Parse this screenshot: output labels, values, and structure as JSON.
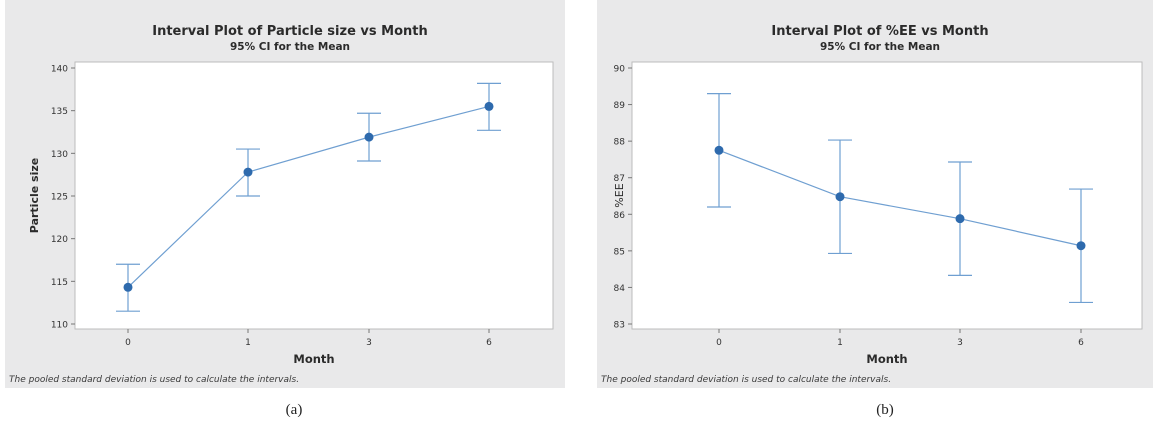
{
  "chart_data": [
    {
      "type": "line",
      "title": "Interval Plot of Particle size vs Month",
      "subtitle": "95% CI for the Mean",
      "xlabel": "Month",
      "ylabel": "Particle size",
      "categories": [
        "0",
        "1",
        "3",
        "6"
      ],
      "series": [
        {
          "values": [
            114.3,
            127.8,
            131.9,
            135.5
          ],
          "ci_lower": [
            111.5,
            125.0,
            129.1,
            132.7
          ],
          "ci_upper": [
            117.0,
            130.5,
            134.7,
            138.2
          ]
        }
      ],
      "ylim": [
        110,
        140
      ],
      "yticks": [
        110,
        115,
        120,
        125,
        130,
        135,
        140
      ],
      "grid": false,
      "legend": "none",
      "footnote": "The pooled standard deviation is used to calculate the intervals.",
      "colors": {
        "marker": "#2e6aad",
        "line": "#6f9fd1",
        "panel_bg": "#e9e9ea"
      }
    },
    {
      "type": "line",
      "title": "Interval Plot of %EE vs Month",
      "subtitle": "95% CI for the Mean",
      "xlabel": "Month",
      "ylabel": "%EE",
      "categories": [
        "0",
        "1",
        "3",
        "6"
      ],
      "series": [
        {
          "values": [
            87.75,
            86.48,
            85.88,
            85.14
          ],
          "ci_lower": [
            86.2,
            84.93,
            84.33,
            83.59
          ],
          "ci_upper": [
            89.3,
            88.03,
            87.43,
            86.69
          ]
        }
      ],
      "ylim": [
        83,
        90
      ],
      "yticks": [
        83,
        84,
        85,
        86,
        87,
        88,
        89,
        90
      ],
      "grid": false,
      "legend": "none",
      "footnote": "The pooled standard deviation is used to calculate the intervals.",
      "colors": {
        "marker": "#2e6aad",
        "line": "#6f9fd1",
        "panel_bg": "#e9e9ea"
      }
    }
  ],
  "captions": [
    "(a)",
    "(b)"
  ]
}
